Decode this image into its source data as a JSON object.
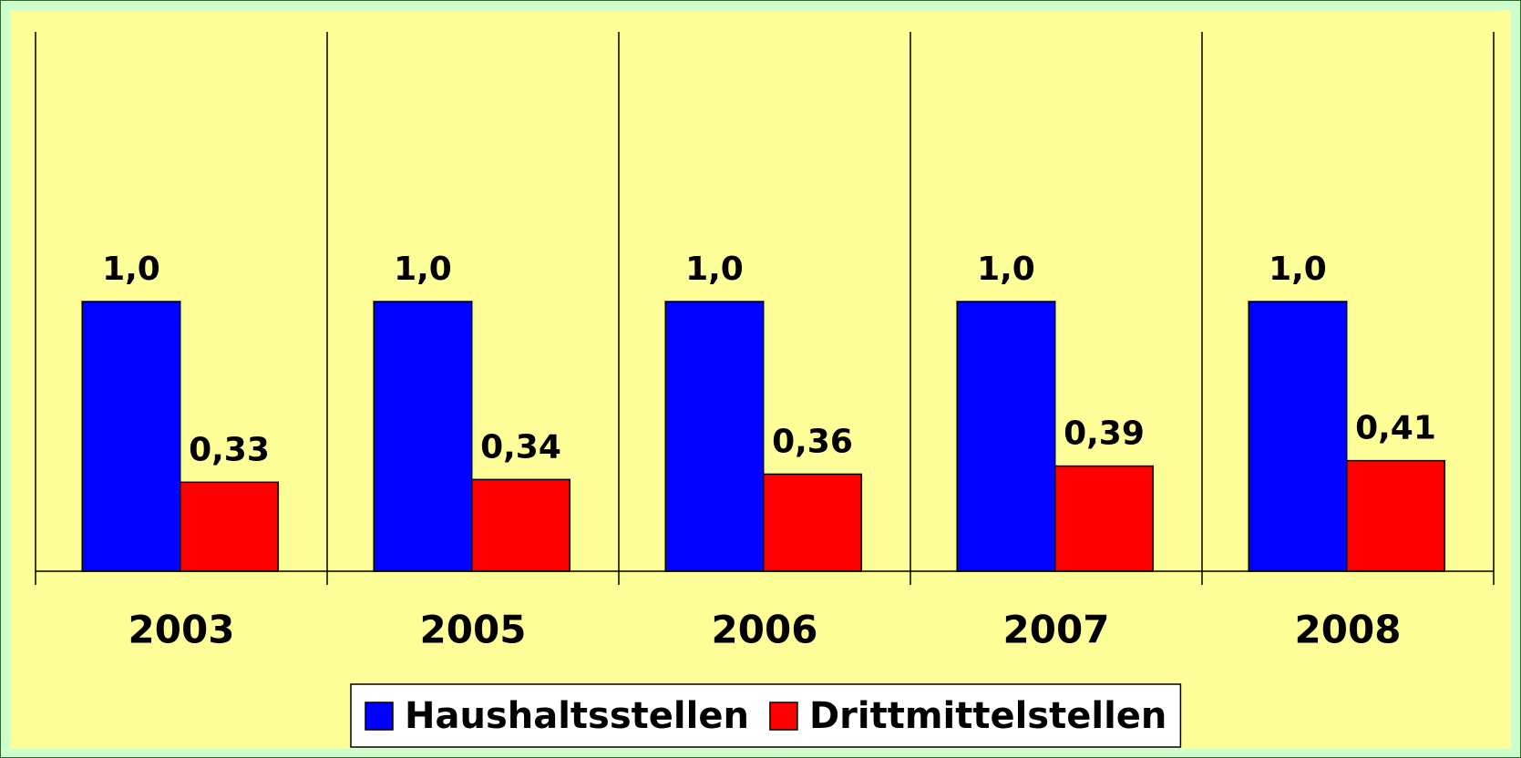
{
  "chart_data": {
    "type": "bar",
    "categories": [
      "2003",
      "2005",
      "2006",
      "2007",
      "2008"
    ],
    "series": [
      {
        "name": "Haushaltsstellen",
        "color": "#0000ff",
        "values": [
          1.0,
          1.0,
          1.0,
          1.0,
          1.0
        ],
        "value_labels": [
          "1,0",
          "1,0",
          "1,0",
          "1,0",
          "1,0"
        ]
      },
      {
        "name": "Drittmittelstellen",
        "color": "#ff0000",
        "values": [
          0.33,
          0.34,
          0.36,
          0.39,
          0.41
        ],
        "value_labels": [
          "0,33",
          "0,34",
          "0,36",
          "0,39",
          "0,41"
        ]
      }
    ],
    "ylim": [
      0,
      2
    ],
    "legend": "bottom"
  }
}
